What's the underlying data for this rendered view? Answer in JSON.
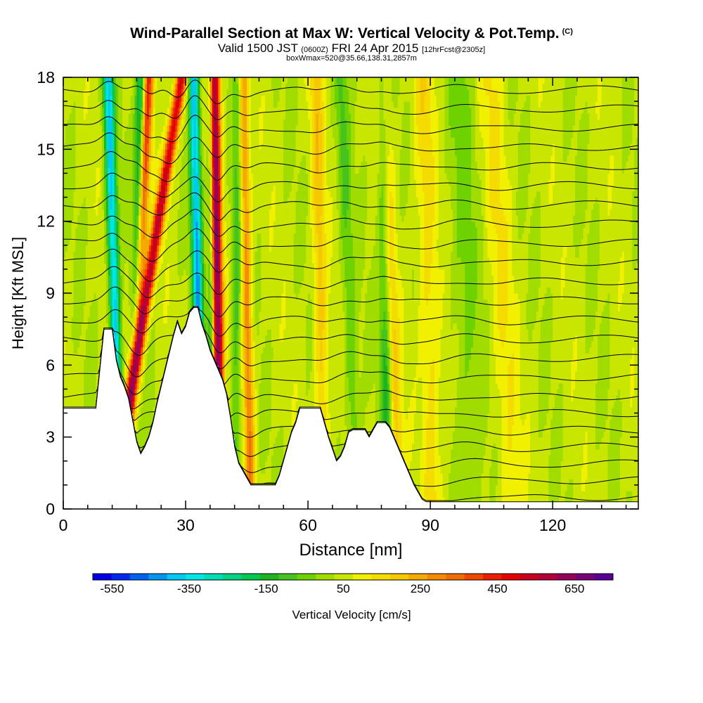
{
  "header": {
    "title": "Wind-Parallel Section at Max W: Vertical Velocity & Pot.Temp.",
    "copyright": "(C)",
    "valid_prefix": "Valid 1500 JST",
    "valid_utc": "(0600Z)",
    "valid_date": "FRI 24 Apr 2015",
    "forecast_info": "[12hrFcst@2305z]",
    "box_info": "boxWmax=520@35.66,138.31,2857m"
  },
  "colors": {
    "frame": "#000000",
    "background": "#ffffff",
    "contour": "#000000"
  },
  "chart_data": {
    "type": "heatmap",
    "xlabel": "Distance [nm]",
    "ylabel": "Height [Kft MSL]",
    "xlim": [
      0,
      141
    ],
    "ylim": [
      0,
      18
    ],
    "x_ticks": [
      0,
      30,
      60,
      90,
      120
    ],
    "y_ticks": [
      0,
      3,
      6,
      9,
      12,
      15,
      18
    ],
    "colorbar": {
      "label": "Vertical Velocity [cm/s]",
      "tick_labels": [
        "-550",
        "-350",
        "-150",
        "50",
        "250",
        "450",
        "650"
      ],
      "tick_values": [
        -550,
        -350,
        -150,
        50,
        250,
        450,
        650
      ],
      "range": [
        -600,
        750
      ],
      "colors": [
        "#0000e6",
        "#0028f0",
        "#0060f0",
        "#0096f0",
        "#00c8f0",
        "#00e6e6",
        "#00dcb4",
        "#00d282",
        "#00c850",
        "#1eb41e",
        "#46c31e",
        "#6ed200",
        "#a0dc00",
        "#c8e600",
        "#f0f000",
        "#f5dc00",
        "#f5c800",
        "#f5aa00",
        "#f58c00",
        "#f06e00",
        "#f04600",
        "#eb1e00",
        "#e60000",
        "#c8001e",
        "#b4003c",
        "#96005a",
        "#780078",
        "#5a0096"
      ]
    },
    "terrain": {
      "x": [
        0,
        8,
        10,
        12,
        13,
        14,
        15,
        16,
        17,
        18,
        19,
        20,
        21,
        22,
        23,
        24,
        25,
        26,
        27,
        28,
        29,
        30,
        31,
        32,
        33,
        34,
        35,
        36,
        37,
        38,
        39,
        40,
        41,
        42,
        43,
        44,
        45,
        46,
        47,
        48,
        50,
        52,
        53,
        54,
        55,
        56,
        57,
        58,
        59,
        60,
        61,
        62,
        63,
        64,
        65,
        66,
        67,
        68,
        69,
        70,
        71,
        72,
        73,
        74,
        75,
        76,
        77,
        78,
        79,
        80,
        81,
        82,
        83,
        84,
        85,
        86,
        87,
        88,
        89,
        90,
        91,
        141
      ],
      "y": [
        4.2,
        4.2,
        7.5,
        7.5,
        6.2,
        5.5,
        5.1,
        4.6,
        3.7,
        2.8,
        2.3,
        2.6,
        3.0,
        3.6,
        4.4,
        5.1,
        5.8,
        6.5,
        7.2,
        7.8,
        7.3,
        7.6,
        8.2,
        8.4,
        8.4,
        7.7,
        7.2,
        6.6,
        6.2,
        5.8,
        5.4,
        4.8,
        3.8,
        2.6,
        1.9,
        1.6,
        1.3,
        1.0,
        1.0,
        1.0,
        1.0,
        1.0,
        1.4,
        2.0,
        2.6,
        3.2,
        3.6,
        4.2,
        4.2,
        4.2,
        4.2,
        4.2,
        4.2,
        3.6,
        3.0,
        2.5,
        2.0,
        2.2,
        2.6,
        3.2,
        3.3,
        3.3,
        3.3,
        3.3,
        3.0,
        3.3,
        3.6,
        3.6,
        3.6,
        3.4,
        3.0,
        2.6,
        2.2,
        1.8,
        1.4,
        1.0,
        0.7,
        0.4,
        0.3,
        0.3,
        0.3,
        0.3
      ]
    },
    "updrafts": [
      {
        "x0": 29,
        "x1": 12,
        "w": 500,
        "width": 1.4
      },
      {
        "x0": 21,
        "x1": 16,
        "w": 380,
        "width": 1.3
      },
      {
        "x0": 37,
        "x1": 38.5,
        "w": 620,
        "width": 1.3
      },
      {
        "x0": 44,
        "x1": 46,
        "w": 260,
        "width": 1.3
      },
      {
        "x0": 62,
        "x1": 64,
        "w": 150,
        "width": 1.6
      },
      {
        "x0": 78,
        "x1": 82,
        "w": 190,
        "width": 1.8
      },
      {
        "x0": 88,
        "x1": 91,
        "w": 110,
        "width": 2.5
      },
      {
        "x0": 105,
        "x1": 110,
        "w": 80,
        "width": 3.0
      }
    ],
    "downdrafts": [
      {
        "x0": 11,
        "x1": 14,
        "w": -420,
        "width": 1.3
      },
      {
        "x0": 19,
        "x1": 17,
        "w": -280,
        "width": 1.2
      },
      {
        "x0": 32,
        "x1": 34,
        "w": -440,
        "width": 1.3
      },
      {
        "x0": 36,
        "x1": 36.5,
        "w": -200,
        "width": 0.9
      },
      {
        "x0": 43,
        "x1": 42,
        "w": -140,
        "width": 1.2
      },
      {
        "x0": 68,
        "x1": 72,
        "w": -110,
        "width": 1.6
      },
      {
        "x0": 78,
        "x1": 80,
        "w": -240,
        "width": 1.5
      },
      {
        "x0": 97,
        "x1": 100,
        "w": -70,
        "width": 3.5
      }
    ],
    "theta_levels": [
      0.5,
      1.2,
      1.9,
      2.6,
      3.3,
      4.0,
      4.7,
      5.5,
      6.3,
      7.1,
      7.9,
      8.7,
      9.5,
      10.3,
      11.1,
      11.9,
      12.7,
      13.5,
      14.3,
      15.1,
      15.9,
      16.7,
      17.5
    ]
  },
  "axes_font": "normal"
}
